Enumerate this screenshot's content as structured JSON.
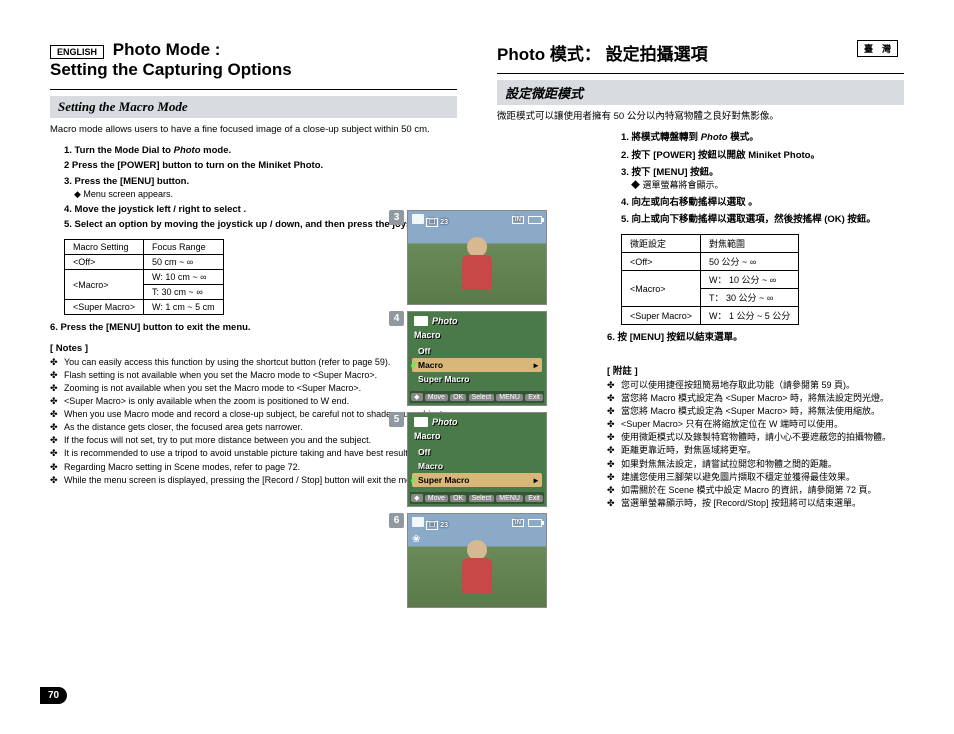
{
  "left": {
    "lang_badge": "ENGLISH",
    "title_1": "Photo Mode :",
    "title_2": "Setting the Capturing Options",
    "subtitle": "Setting the Macro Mode",
    "intro": "Macro mode allows users to have a fine focused image of a close-up subject within 50 cm.",
    "steps": [
      {
        "n": "1.",
        "t": "Turn the Mode Dial to ",
        "em": "Photo",
        "t2": " mode.",
        "bold": true
      },
      {
        "n": "2",
        "t": "Press the [POWER] button to turn on the Miniket Photo.",
        "bold": true
      },
      {
        "n": "3.",
        "t": "Press the [MENU] button.",
        "bold": true,
        "sub": "◆  Menu screen appears."
      },
      {
        "n": "4.",
        "t": "Move the joystick left / right to select <Macro>.",
        "bold": true
      },
      {
        "n": "5.",
        "t": "Select an option by moving the joystick up / down, and then press the joystick (OK).",
        "bold": true
      }
    ],
    "table": {
      "headers": [
        "Macro Setting",
        "Focus Range"
      ],
      "rows": [
        [
          "<Off>",
          "50 cm ~ ∞"
        ],
        [
          "<Macro>",
          "W: 10 cm ~ ∞"
        ],
        [
          "",
          "T: 30 cm ~ ∞"
        ],
        [
          "<Super Macro>",
          "W: 1 cm ~ 5 cm"
        ]
      ]
    },
    "step6": "6.  Press the [MENU] button to exit the menu.",
    "notes_hdr": "[ Notes ]",
    "notes": [
      "You can easily access this function by using the shortcut button (refer to page 59).",
      "Flash setting is not available when you set the Macro mode to <Super Macro>.",
      "Zooming is not available when you set the Macro mode to <Super Macro>.",
      "<Super Macro> is only available when the zoom is positioned to W end.",
      "When you use Macro mode and record a close-up subject, be careful not to shade your subject.",
      "As the distance gets closer, the focused area gets narrower.",
      "If the focus will not set, try to put more distance between you and the subject.",
      "It is recommended to use a tripod to avoid unstable picture taking and have best results.",
      "Regarding Macro setting in Scene modes, refer to page 72.",
      "While the menu screen is displayed, pressing the [Record / Stop] button will exit the menu."
    ],
    "page_num": "70"
  },
  "right": {
    "lang_badge": "臺　灣",
    "title": "Photo  模式：  設定拍攝選項",
    "subtitle": "設定微距模式",
    "intro": "微距模式可以讓使用者擁有 50 公分以內特寫物體之良好對焦影像。",
    "steps": [
      {
        "n": "1.",
        "t": "將模式轉盤轉到 ",
        "em": "Photo",
        "t2": " 模式。"
      },
      {
        "n": "2.",
        "t": "按下 [POWER] 按鈕以開啟 Miniket Photo。"
      },
      {
        "n": "3.",
        "t": "按下 [MENU] 按鈕。",
        "sub": "◆  選單螢幕將會顯示。"
      },
      {
        "n": "4.",
        "t": "向左或向右移動搖桿以選取 <Macro>。"
      },
      {
        "n": "5.",
        "t": "向上或向下移動搖桿以選取選項，然後按搖桿 (OK) 按鈕。"
      }
    ],
    "table": {
      "headers": [
        "微距設定",
        "對焦範圍"
      ],
      "rows": [
        [
          "<Off>",
          "50 公分 ~ ∞"
        ],
        [
          "<Macro>",
          "W： 10 公分 ~ ∞"
        ],
        [
          "",
          "T： 30 公分 ~ ∞"
        ],
        [
          "<Super Macro>",
          "W： 1 公分 ~ 5 公分"
        ]
      ]
    },
    "step6": "6. 按 [MENU] 按鈕以結束選單。",
    "notes_hdr": "[ 附註 ]",
    "notes": [
      "您可以使用捷徑按鈕簡易地存取此功能（請參閱第 59 頁)。",
      "當您將 Macro 模式設定為 <Super Macro> 時，將無法設定閃光燈。",
      "當您將 Macro 模式設定為 <Super Macro> 時，將無法使用縮放。",
      "<Super Macro> 只有在將縮放定位在 W 端時可以使用。",
      "使用微距模式以及錄製特寫物體時，請小心不要遮蔽您的拍攝物體。",
      "距離更靠近時，對焦區域將更窄。",
      "如果對焦無法設定，請嘗試拉開您和物體之間的距離。",
      "建議您使用三腳架以避免圖片擷取不穩定並獲得最佳效果。",
      "如需關於在 Scene 模式中設定 Macro 的資訊，請參閱第 72 頁。",
      "當選單螢幕顯示時，按 [Record/Stop] 按鈕將可以結束選單。"
    ]
  },
  "screens": {
    "s3": {
      "num": "3",
      "count": "23",
      "in": "IN"
    },
    "s4": {
      "num": "4",
      "hdr": "Photo",
      "sub": "Macro",
      "items": [
        "Off",
        "Macro",
        "Super Macro"
      ],
      "sel": 1,
      "bot_move": "Move",
      "bot_ok": "OK",
      "bot_sel": "Select",
      "bot_menu": "MENU",
      "bot_exit": "Exit"
    },
    "s5": {
      "num": "5",
      "hdr": "Photo",
      "sub": "Macro",
      "items": [
        "Off",
        "Macro",
        "Super Macro"
      ],
      "sel": 2,
      "bot_move": "Move",
      "bot_ok": "OK",
      "bot_sel": "Select",
      "bot_menu": "MENU",
      "bot_exit": "Exit"
    },
    "s6": {
      "num": "6",
      "count": "23",
      "in": "IN"
    }
  }
}
